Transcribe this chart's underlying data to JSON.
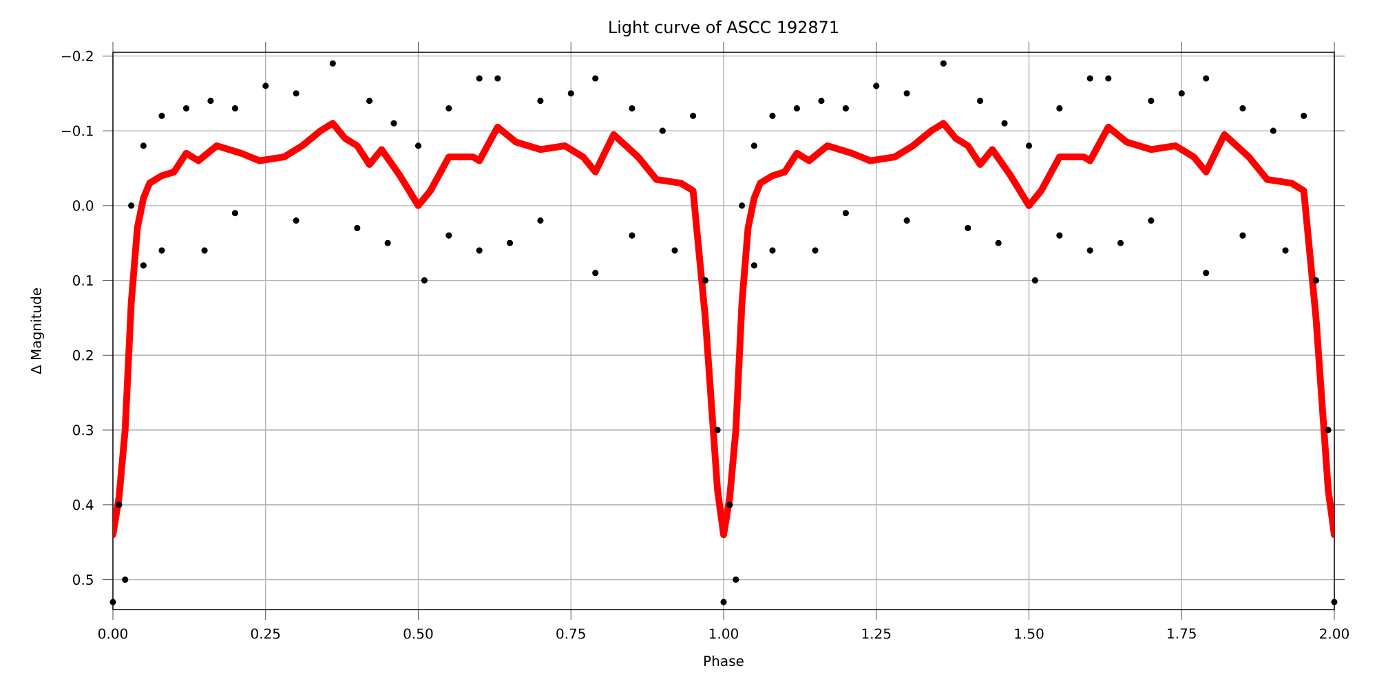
{
  "chart_data": {
    "type": "scatter",
    "title": "Light curve of ASCC 192871",
    "xlabel": "Phase",
    "ylabel": "Δ Magnitude",
    "xlim": [
      0,
      2
    ],
    "ylim": [
      0.54,
      -0.205
    ],
    "xticks": [
      {
        "value": 0,
        "label": "0.00"
      },
      {
        "value": 0.25,
        "label": "0.25"
      },
      {
        "value": 0.5,
        "label": "0.50"
      },
      {
        "value": 0.75,
        "label": "0.75"
      },
      {
        "value": 1,
        "label": "1.00"
      },
      {
        "value": 1.25,
        "label": "1.25"
      },
      {
        "value": 1.5,
        "label": "1.50"
      },
      {
        "value": 1.75,
        "label": "1.75"
      },
      {
        "value": 2,
        "label": "2.00"
      }
    ],
    "yticks": [
      {
        "value": -0.2,
        "label": "−0.2"
      },
      {
        "value": -0.1,
        "label": "−0.1"
      },
      {
        "value": 0,
        "label": "0.0"
      },
      {
        "value": 0.1,
        "label": "0.1"
      },
      {
        "value": 0.2,
        "label": "0.2"
      },
      {
        "value": 0.3,
        "label": "0.3"
      },
      {
        "value": 0.4,
        "label": "0.4"
      },
      {
        "value": 0.5,
        "label": "0.5"
      }
    ],
    "grid": true,
    "series": [
      {
        "color": "#000000",
        "marker": "circle",
        "x": [
          0.0,
          0.01,
          0.02,
          0.03,
          0.05,
          0.05,
          0.08,
          0.08,
          0.12,
          0.15,
          0.16,
          0.2,
          0.2,
          0.25,
          0.3,
          0.3,
          0.36,
          0.4,
          0.42,
          0.45,
          0.46,
          0.5,
          0.51,
          0.55,
          0.55,
          0.6,
          0.6,
          0.63,
          0.65,
          0.7,
          0.7,
          0.75,
          0.79,
          0.79,
          0.85,
          0.85,
          0.9,
          0.92,
          0.95,
          0.97,
          0.99,
          1.0,
          1.01,
          1.02,
          1.03,
          1.05,
          1.05,
          1.08,
          1.08,
          1.12,
          1.15,
          1.16,
          1.2,
          1.2,
          1.25,
          1.3,
          1.3,
          1.36,
          1.4,
          1.42,
          1.45,
          1.46,
          1.5,
          1.51,
          1.55,
          1.55,
          1.6,
          1.6,
          1.63,
          1.65,
          1.7,
          1.7,
          1.75,
          1.79,
          1.79,
          1.85,
          1.85,
          1.9,
          1.92,
          1.95,
          1.97,
          1.99,
          2.0
        ],
        "values": [
          0.53,
          0.4,
          0.5,
          0.0,
          -0.08,
          0.08,
          -0.12,
          0.06,
          -0.13,
          0.06,
          -0.14,
          -0.13,
          0.01,
          -0.16,
          -0.15,
          0.02,
          -0.19,
          0.03,
          -0.14,
          0.05,
          -0.11,
          -0.08,
          0.1,
          -0.13,
          0.04,
          -0.17,
          0.06,
          -0.17,
          0.05,
          -0.14,
          0.02,
          -0.15,
          -0.17,
          0.09,
          -0.13,
          0.04,
          -0.1,
          0.06,
          -0.12,
          0.1,
          0.3,
          0.53,
          0.4,
          0.5,
          0.0,
          -0.08,
          0.08,
          -0.12,
          0.06,
          -0.13,
          0.06,
          -0.14,
          -0.13,
          0.01,
          -0.16,
          -0.15,
          0.02,
          -0.19,
          0.03,
          -0.14,
          0.05,
          -0.11,
          -0.08,
          0.1,
          -0.13,
          0.04,
          -0.17,
          0.06,
          -0.17,
          0.05,
          -0.14,
          0.02,
          -0.15,
          -0.17,
          0.09,
          -0.13,
          0.04,
          -0.1,
          0.06,
          -0.12,
          0.1,
          0.3,
          0.53
        ]
      },
      {
        "type": "line",
        "color": "#ff0000",
        "marker": "none",
        "x": [
          0.0,
          0.01,
          0.02,
          0.03,
          0.04,
          0.05,
          0.06,
          0.08,
          0.1,
          0.12,
          0.14,
          0.17,
          0.21,
          0.24,
          0.28,
          0.31,
          0.34,
          0.36,
          0.38,
          0.4,
          0.42,
          0.44,
          0.47,
          0.5,
          0.52,
          0.55,
          0.59,
          0.6,
          0.63,
          0.66,
          0.7,
          0.74,
          0.77,
          0.79,
          0.82,
          0.86,
          0.89,
          0.93,
          0.95,
          0.97,
          0.99,
          1.0,
          1.01,
          1.02,
          1.03,
          1.04,
          1.05,
          1.06,
          1.08,
          1.1,
          1.12,
          1.14,
          1.17,
          1.21,
          1.24,
          1.28,
          1.31,
          1.34,
          1.36,
          1.38,
          1.4,
          1.42,
          1.44,
          1.47,
          1.5,
          1.52,
          1.55,
          1.59,
          1.6,
          1.63,
          1.66,
          1.7,
          1.74,
          1.77,
          1.79,
          1.82,
          1.86,
          1.89,
          1.93,
          1.95,
          1.97,
          1.99,
          2.0
        ],
        "values": [
          0.44,
          0.39,
          0.3,
          0.13,
          0.03,
          -0.01,
          -0.03,
          -0.04,
          -0.045,
          -0.07,
          -0.06,
          -0.08,
          -0.07,
          -0.06,
          -0.065,
          -0.08,
          -0.1,
          -0.11,
          -0.09,
          -0.08,
          -0.055,
          -0.075,
          -0.04,
          0.0,
          -0.02,
          -0.065,
          -0.065,
          -0.06,
          -0.105,
          -0.085,
          -0.075,
          -0.08,
          -0.065,
          -0.045,
          -0.095,
          -0.065,
          -0.035,
          -0.03,
          -0.02,
          0.15,
          0.38,
          0.44,
          0.39,
          0.3,
          0.13,
          0.03,
          -0.01,
          -0.03,
          -0.04,
          -0.045,
          -0.07,
          -0.06,
          -0.08,
          -0.07,
          -0.06,
          -0.065,
          -0.08,
          -0.1,
          -0.11,
          -0.09,
          -0.08,
          -0.055,
          -0.075,
          -0.04,
          0.0,
          -0.02,
          -0.065,
          -0.065,
          -0.06,
          -0.105,
          -0.085,
          -0.075,
          -0.08,
          -0.065,
          -0.045,
          -0.095,
          -0.065,
          -0.035,
          -0.03,
          -0.02,
          0.15,
          0.38,
          0.44
        ]
      }
    ]
  }
}
